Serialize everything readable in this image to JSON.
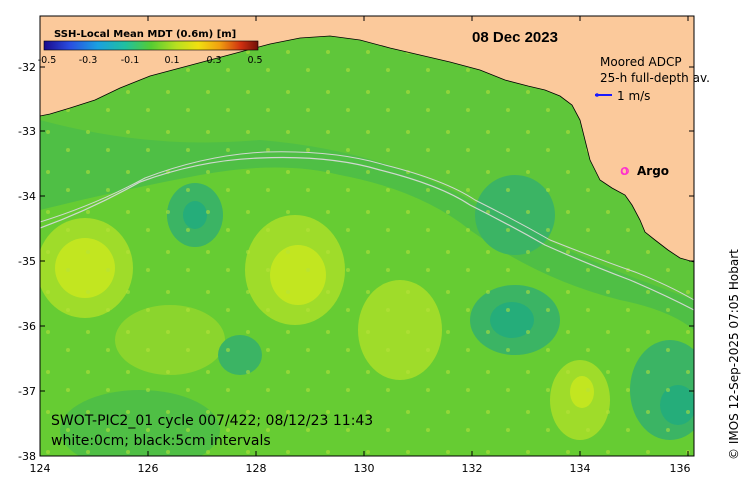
{
  "map": {
    "date": "08 Dec 2023",
    "colorbar": {
      "title": "SSH-Local Mean MDT (0.6m) [m]",
      "ticks": [
        "-0.5",
        "-0.3",
        "-0.1",
        "0.1",
        "0.3",
        "0.5"
      ]
    },
    "legend": {
      "adcp_title": "Moored ADCP",
      "adcp_subtitle": "25-h full-depth av.",
      "adcp_scale": "1 m/s",
      "argo_label": "Argo",
      "argo_marker": "o"
    },
    "info": {
      "line1": "SWOT-PIC2_01 cycle 007/422; 08/12/23 11:43",
      "line2": "white:0cm; black:5cm intervals"
    },
    "credit": "© IMOS 12-Sep-2025 07:05 Hobart",
    "y_ticks": [
      "-32",
      "-33",
      "-34",
      "-35",
      "-36",
      "-37",
      "-38"
    ],
    "x_ticks": [
      "124",
      "126",
      "128",
      "130",
      "132",
      "134",
      "136"
    ],
    "colors": {
      "land": "#fbc99b",
      "ocean_base": "#66cc33",
      "high_ssh": "#c8e620",
      "low_ssh": "#1fb47a",
      "argo": "#ff33cc",
      "adcp_arrow": "#1a1aff"
    }
  }
}
